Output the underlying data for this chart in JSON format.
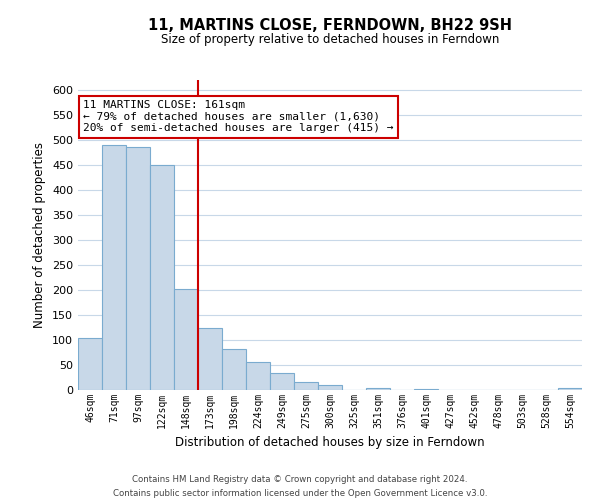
{
  "title": "11, MARTINS CLOSE, FERNDOWN, BH22 9SH",
  "subtitle": "Size of property relative to detached houses in Ferndown",
  "xlabel": "Distribution of detached houses by size in Ferndown",
  "ylabel": "Number of detached properties",
  "bar_labels": [
    "46sqm",
    "71sqm",
    "97sqm",
    "122sqm",
    "148sqm",
    "173sqm",
    "198sqm",
    "224sqm",
    "249sqm",
    "275sqm",
    "300sqm",
    "325sqm",
    "351sqm",
    "376sqm",
    "401sqm",
    "427sqm",
    "452sqm",
    "478sqm",
    "503sqm",
    "528sqm",
    "554sqm"
  ],
  "bar_values": [
    105,
    490,
    487,
    450,
    202,
    125,
    83,
    57,
    35,
    17,
    10,
    0,
    5,
    0,
    3,
    0,
    0,
    0,
    0,
    0,
    5
  ],
  "bar_color": "#c8d8e8",
  "bar_edge_color": "#7aabcf",
  "vline_x": 4.5,
  "vline_color": "#cc0000",
  "annotation_line1": "11 MARTINS CLOSE: 161sqm",
  "annotation_line2": "← 79% of detached houses are smaller (1,630)",
  "annotation_line3": "20% of semi-detached houses are larger (415) →",
  "annotation_box_color": "#ffffff",
  "annotation_box_edge": "#cc0000",
  "ylim": [
    0,
    620
  ],
  "yticks": [
    0,
    50,
    100,
    150,
    200,
    250,
    300,
    350,
    400,
    450,
    500,
    550,
    600
  ],
  "grid_color": "#c8d8e8",
  "background_color": "#ffffff",
  "footer_line1": "Contains HM Land Registry data © Crown copyright and database right 2024.",
  "footer_line2": "Contains public sector information licensed under the Open Government Licence v3.0."
}
